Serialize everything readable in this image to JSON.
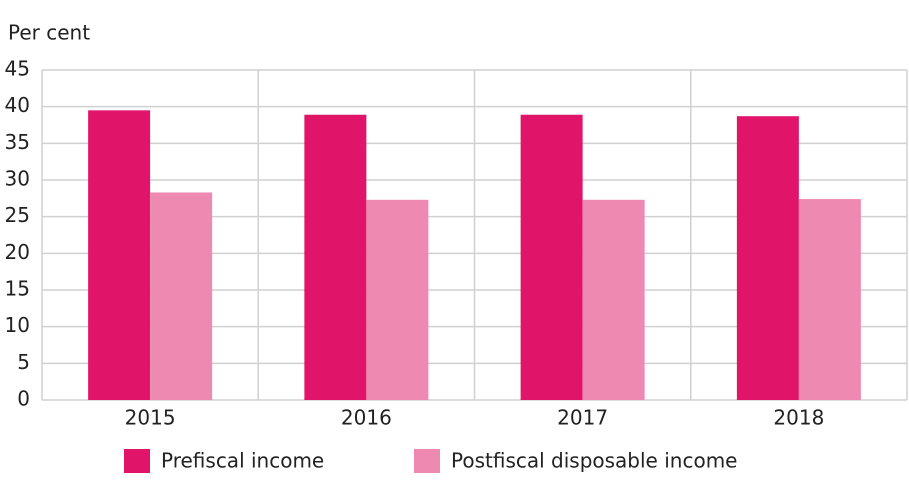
{
  "chart_data": {
    "type": "bar",
    "y_label": "Per cent",
    "categories": [
      "2015",
      "2016",
      "2017",
      "2018"
    ],
    "series": [
      {
        "name": "Prefiscal income",
        "color": "#e0156a",
        "values": [
          39.5,
          38.9,
          38.9,
          38.7
        ]
      },
      {
        "name": "Postfiscal disposable income",
        "color": "#ee8ab2",
        "values": [
          28.3,
          27.3,
          27.3,
          27.4
        ]
      }
    ],
    "ylim": [
      0,
      45
    ],
    "yticks": [
      0,
      5,
      10,
      15,
      20,
      25,
      30,
      35,
      40,
      45
    ],
    "grid": true
  }
}
